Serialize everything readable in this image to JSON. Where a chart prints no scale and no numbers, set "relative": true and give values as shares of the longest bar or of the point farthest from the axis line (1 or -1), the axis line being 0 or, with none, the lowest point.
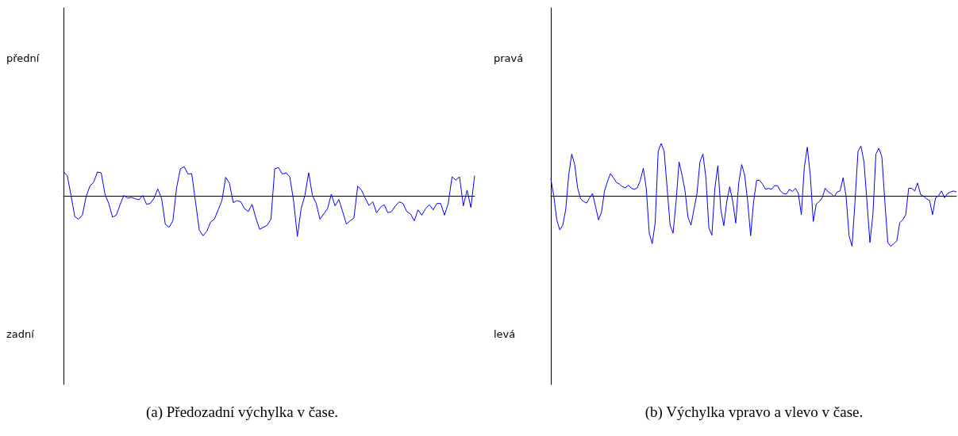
{
  "chart_data": [
    {
      "type": "line",
      "relative": true,
      "title": "(a) Předozadní výchylka v čase.",
      "annotations": [
        "přední",
        "zadní"
      ],
      "categories": [
        null,
        null,
        null,
        null,
        null,
        null,
        null,
        null,
        null,
        null,
        null,
        null,
        null,
        null,
        null,
        null,
        null,
        null,
        null,
        null,
        null,
        null,
        null,
        null,
        null,
        null,
        null,
        null,
        null,
        null,
        null,
        null,
        null,
        null,
        null,
        null,
        null,
        null,
        null,
        null,
        null,
        null,
        null,
        null,
        null,
        null,
        null,
        null,
        null,
        null,
        null,
        null,
        null,
        null,
        null,
        null,
        null,
        null,
        null,
        null,
        null,
        null,
        null,
        null,
        null,
        null,
        null,
        null,
        null,
        null,
        null,
        null,
        null,
        null,
        null,
        null,
        null,
        null,
        null,
        null,
        null,
        null,
        null,
        null,
        null,
        null,
        null,
        null,
        null,
        null,
        null,
        null,
        null,
        null,
        null,
        null,
        null,
        null,
        null,
        null,
        null,
        null,
        null,
        null,
        null,
        null,
        null,
        null,
        null,
        null
      ],
      "series": [
        {
          "color": "#0000ff",
          "values": [
            0.61,
            0.51,
            0.02,
            -0.51,
            -0.57,
            -0.47,
            -0.01,
            0.25,
            0.35,
            0.6,
            0.58,
            0.05,
            -0.18,
            -0.52,
            -0.47,
            -0.21,
            0.02,
            -0.05,
            -0.03,
            -0.06,
            -0.09,
            0.02,
            -0.2,
            -0.18,
            -0.05,
            0.18,
            -0.05,
            -0.7,
            -0.77,
            -0.61,
            0.22,
            0.68,
            0.73,
            0.55,
            0.56,
            -0.14,
            -0.84,
            -0.98,
            -0.87,
            -0.64,
            -0.57,
            -0.34,
            -0.11,
            0.47,
            0.32,
            -0.16,
            -0.11,
            -0.14,
            -0.31,
            -0.38,
            -0.2,
            -0.54,
            -0.82,
            -0.77,
            -0.72,
            -0.57,
            0.68,
            0.71,
            0.55,
            0.58,
            0.48,
            -0.11,
            -1,
            -0.31,
            0.02,
            0.58,
            0.02,
            -0.18,
            -0.57,
            -0.44,
            -0.31,
            0.05,
            -0.24,
            -0.08,
            -0.38,
            -0.69,
            -0.61,
            -0.54,
            0.25,
            0.15,
            -0.05,
            -0.23,
            -0.14,
            -0.41,
            -0.28,
            -0.21,
            -0.41,
            -0.38,
            -0.24,
            -0.14,
            -0.18,
            -0.38,
            -0.44,
            -0.61,
            -0.34,
            -0.47,
            -0.31,
            -0.21,
            -0.34,
            -0.18,
            -0.18,
            -0.47,
            -0.18,
            0.48,
            0.4,
            0.48,
            -0.24,
            0.15,
            -0.28,
            0.51
          ]
        }
      ]
    },
    {
      "type": "line",
      "relative": true,
      "title": "(b) Výchylka vpravo a vlevo v čase.",
      "annotations": [
        "pravá",
        "levá"
      ],
      "categories": [
        null,
        null,
        null,
        null,
        null,
        null,
        null,
        null,
        null,
        null,
        null,
        null,
        null,
        null,
        null,
        null,
        null,
        null,
        null,
        null,
        null,
        null,
        null,
        null,
        null,
        null,
        null,
        null,
        null,
        null,
        null,
        null,
        null,
        null,
        null,
        null,
        null,
        null,
        null,
        null,
        null,
        null,
        null,
        null,
        null,
        null,
        null,
        null,
        null,
        null,
        null,
        null,
        null,
        null,
        null,
        null,
        null,
        null,
        null,
        null,
        null,
        null,
        null,
        null,
        null,
        null,
        null,
        null,
        null,
        null,
        null,
        null,
        null,
        null,
        null,
        null,
        null,
        null,
        null,
        null,
        null,
        null,
        null,
        null,
        null,
        null,
        null,
        null,
        null,
        null,
        null,
        null,
        null,
        null,
        null,
        null,
        null,
        null,
        null,
        null,
        null,
        null,
        null,
        null,
        null,
        null,
        null,
        null,
        null,
        null,
        null,
        null,
        null,
        null,
        null,
        null,
        null,
        null,
        null,
        null,
        null,
        null,
        null,
        null,
        null,
        null,
        null,
        null,
        null,
        null,
        null,
        null,
        null,
        null,
        null,
        null,
        null
      ],
      "series": [
        {
          "color": "#0000ff",
          "values": [
            0.33,
            0,
            -0.45,
            -0.64,
            -0.55,
            -0.25,
            0.4,
            0.8,
            0.6,
            0.15,
            -0.05,
            -0.1,
            -0.13,
            -0.03,
            0.05,
            -0.2,
            -0.45,
            -0.3,
            0.1,
            0.28,
            0.43,
            0.35,
            0.26,
            0.23,
            0.18,
            0.16,
            0.21,
            0.15,
            0.13,
            0.16,
            0.3,
            0.53,
            0.15,
            -0.7,
            -0.9,
            -0.5,
            0.85,
            1,
            0.85,
            0.15,
            -0.55,
            -0.7,
            -0.1,
            0.65,
            0.4,
            0.1,
            -0.4,
            -0.55,
            -0.25,
            0.05,
            0.65,
            0.8,
            0.35,
            -0.6,
            -0.74,
            0.15,
            0.58,
            -0.25,
            -0.56,
            -0.1,
            0.18,
            -0.1,
            -0.51,
            0.25,
            0.6,
            0.4,
            -0.1,
            -0.75,
            -0.1,
            0.3,
            0.3,
            0.23,
            0.13,
            0.15,
            0.13,
            0.2,
            0.2,
            0.1,
            0.05,
            0.04,
            0.13,
            0.09,
            0.15,
            0.05,
            -0.35,
            0.55,
            0.93,
            0.4,
            -0.48,
            -0.15,
            -0.1,
            -0.03,
            0.15,
            0.08,
            0.05,
            -0.01,
            0.08,
            0.1,
            0.35,
            0,
            -0.75,
            -0.95,
            -0.1,
            0.85,
            0.95,
            0.65,
            -0.1,
            -0.88,
            -0.35,
            0.8,
            0.91,
            0.75,
            -0.1,
            -0.88,
            -0.95,
            -0.9,
            -0.85,
            -0.5,
            -0.45,
            -0.35,
            0.15,
            0.15,
            0.1,
            0.25,
            0.03,
            0,
            -0.05,
            -0.08,
            -0.35,
            -0.03,
            0.01,
            0.1,
            -0.03,
            0.05,
            0.08,
            0.1,
            0.08
          ]
        }
      ]
    }
  ]
}
